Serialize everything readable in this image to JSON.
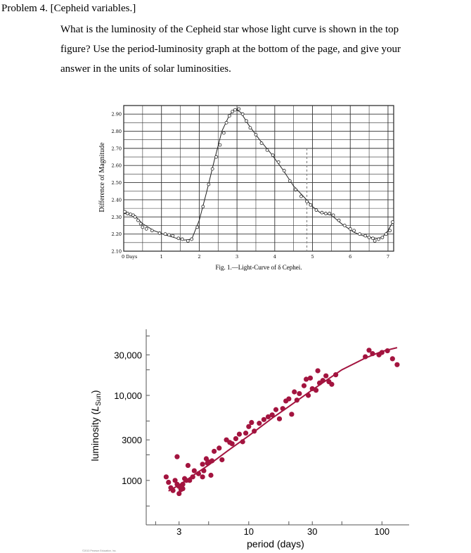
{
  "problem": {
    "heading": "Problem 4. [Cepheid variables.]",
    "text_lines": [
      "What is the luminosity of the Cepheid star whose light curve is shown in the top",
      "figure? Use the period-luminosity graph at the bottom of the page, and give your",
      "answer in the units of solar luminosities."
    ]
  },
  "chart_data": [
    {
      "type": "scatter",
      "title": "",
      "caption": "Fig. 1.—Light-Curve of δ Cephei.",
      "ylabel": "Difference of Magnitude",
      "xlabel": "",
      "x_tick_labels": [
        "0 Days",
        "1",
        "2",
        "3",
        "4",
        "5",
        "6",
        "7"
      ],
      "y_tick_labels": [
        "2.90",
        "2.80",
        "2.70",
        "2.60",
        "2.50",
        "2.40",
        "2.30",
        "2.20",
        "2.10"
      ],
      "xlim": [
        0,
        7.15
      ],
      "ylim": [
        2.1,
        2.95
      ],
      "grid": true,
      "marker_dashed_x": 4.85,
      "curve": {
        "x": [
          0,
          0.25,
          0.5,
          0.8,
          1.1,
          1.4,
          1.6,
          1.8,
          2.0,
          2.2,
          2.4,
          2.6,
          2.8,
          2.95,
          3.1,
          3.3,
          3.6,
          3.9,
          4.2,
          4.5,
          4.8,
          5.0,
          5.2,
          5.5,
          5.8,
          6.1,
          6.4,
          6.7,
          6.85,
          7.0,
          7.15
        ],
        "y": [
          2.32,
          2.315,
          2.26,
          2.22,
          2.195,
          2.175,
          2.165,
          2.17,
          2.28,
          2.45,
          2.63,
          2.8,
          2.895,
          2.93,
          2.91,
          2.84,
          2.75,
          2.67,
          2.58,
          2.48,
          2.41,
          2.36,
          2.325,
          2.31,
          2.255,
          2.21,
          2.185,
          2.175,
          2.18,
          2.22,
          2.28
        ]
      },
      "points": {
        "x": [
          0.03,
          0.1,
          0.18,
          0.25,
          0.3,
          0.38,
          0.45,
          0.5,
          0.6,
          0.75,
          0.95,
          1.1,
          1.2,
          1.3,
          1.45,
          1.55,
          1.7,
          1.8,
          1.95,
          2.1,
          2.25,
          2.35,
          2.45,
          2.55,
          2.65,
          2.72,
          2.8,
          2.88,
          2.95,
          3.05,
          3.15,
          3.25,
          3.35,
          3.5,
          3.65,
          3.8,
          3.95,
          4.1,
          4.25,
          4.4,
          4.55,
          4.7,
          4.85,
          4.95,
          5.1,
          5.25,
          5.35,
          5.45,
          5.55,
          5.7,
          5.85,
          6.0,
          6.1,
          6.25,
          6.4,
          6.5,
          6.6,
          6.65,
          6.75,
          6.85,
          6.95,
          7.05,
          7.12
        ],
        "y": [
          2.33,
          2.32,
          2.315,
          2.31,
          2.3,
          2.28,
          2.26,
          2.24,
          2.23,
          2.22,
          2.205,
          2.2,
          2.195,
          2.19,
          2.175,
          2.17,
          2.16,
          2.17,
          2.24,
          2.36,
          2.49,
          2.58,
          2.65,
          2.72,
          2.79,
          2.85,
          2.89,
          2.915,
          2.925,
          2.93,
          2.9,
          2.86,
          2.82,
          2.78,
          2.73,
          2.69,
          2.66,
          2.62,
          2.57,
          2.51,
          2.46,
          2.42,
          2.39,
          2.37,
          2.34,
          2.325,
          2.32,
          2.32,
          2.31,
          2.28,
          2.25,
          2.23,
          2.22,
          2.2,
          2.19,
          2.18,
          2.175,
          2.16,
          2.17,
          2.18,
          2.2,
          2.22,
          2.27
        ]
      }
    },
    {
      "type": "scatter",
      "title": "",
      "xlabel": "period (days)",
      "ylabel": "luminosity (L_Sun)",
      "ylabel_main": "luminosity (",
      "ylabel_symbol": "L",
      "ylabel_sub": "Sun",
      "ylabel_end": ")",
      "x_scale": "log",
      "y_scale": "log",
      "xlim": [
        1.7,
        160
      ],
      "ylim": [
        300,
        60000
      ],
      "x_ticks": [
        3,
        10,
        30,
        100
      ],
      "x_tick_labels": [
        "3",
        "10",
        "30",
        "100"
      ],
      "y_ticks": [
        1000,
        3000,
        10000,
        30000
      ],
      "y_tick_labels": [
        "1000",
        "3000",
        "10,000",
        "30,000"
      ],
      "grid": false,
      "point_color": "#a3143f",
      "fit_line": {
        "x": [
          2.5,
          3,
          4,
          5,
          7,
          10,
          15,
          20,
          30,
          50,
          75,
          100,
          130
        ],
        "y": [
          750,
          880,
          1200,
          1520,
          2250,
          3350,
          5400,
          7400,
          11600,
          20000,
          27500,
          33000,
          36500
        ]
      },
      "points": {
        "x": [
          2.4,
          2.5,
          2.6,
          2.7,
          2.8,
          2.9,
          3.0,
          3.1,
          3.2,
          3.3,
          3.4,
          3.6,
          3.8,
          2.9,
          3.0,
          3.2,
          3.5,
          3.9,
          4.2,
          4.5,
          4.8,
          5.0,
          5.3,
          4.5,
          4.6,
          4.9,
          5.2,
          5.5,
          6.0,
          6.3,
          6.8,
          7.2,
          7.5,
          8.0,
          8.5,
          9.0,
          9.5,
          10.0,
          10.5,
          11.0,
          12.0,
          13.0,
          14.0,
          15.0,
          16.0,
          17.0,
          18.0,
          19.0,
          20.0,
          21.0,
          22.0,
          23.0,
          24.0,
          26.0,
          28.0,
          30.0,
          32.0,
          34.0,
          36.0,
          38.0,
          40.0,
          42.0,
          45.0,
          27.0,
          33.0,
          29.0,
          80.0,
          85.0,
          100.0,
          120.0,
          130.0,
          75.0,
          95.0,
          110.0
        ],
        "y": [
          1100,
          950,
          820,
          760,
          1000,
          900,
          850,
          780,
          900,
          1050,
          1000,
          1000,
          1100,
          1900,
          700,
          800,
          1500,
          1300,
          1200,
          1550,
          1800,
          1650,
          1700,
          1100,
          1300,
          1600,
          1150,
          2200,
          2400,
          1750,
          3000,
          2800,
          2700,
          3100,
          3500,
          2850,
          3600,
          4300,
          4800,
          3800,
          4700,
          5200,
          5600,
          5900,
          6800,
          5300,
          7000,
          8600,
          9100,
          6000,
          11000,
          8800,
          10500,
          13000,
          10000,
          12000,
          11500,
          14000,
          15000,
          17000,
          14500,
          13500,
          17500,
          15500,
          19500,
          16000,
          34000,
          31000,
          32000,
          27000,
          23000,
          28500,
          30000,
          33500
        ]
      }
    }
  ],
  "footer": {
    "copyright": "©2013 Pearson Education, Inc."
  }
}
